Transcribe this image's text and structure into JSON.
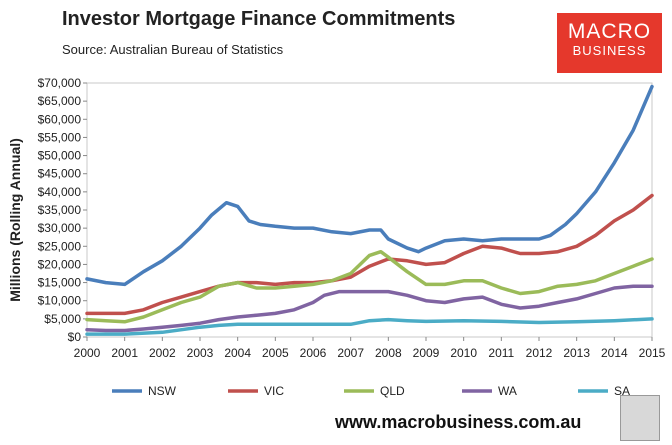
{
  "header": {
    "title": "Investor Mortgage Finance Commitments",
    "source": "Source: Australian Bureau of Statistics"
  },
  "logo": {
    "line1": "MACRO",
    "line2": "BUSINESS",
    "color": "#e5382c"
  },
  "footer": {
    "url": "www.macrobusiness.com.au"
  },
  "chart_data": {
    "type": "line",
    "title": "Investor Mortgage Finance Commitments",
    "ylabel": "Millions (Rolling Annual)",
    "xlabel": "",
    "xlim": [
      2000,
      2015
    ],
    "ylim": [
      0,
      70000
    ],
    "x_ticks": [
      "2000",
      "2001",
      "2002",
      "2003",
      "2004",
      "2005",
      "2006",
      "2007",
      "2008",
      "2009",
      "2010",
      "2011",
      "2012",
      "2013",
      "2014",
      "2015"
    ],
    "y_ticks": [
      "$0",
      "$5,000",
      "$10,000",
      "$15,000",
      "$20,000",
      "$25,000",
      "$30,000",
      "$35,000",
      "$40,000",
      "$45,000",
      "$50,000",
      "$55,000",
      "$60,000",
      "$65,000",
      "$70,000"
    ],
    "grid": false,
    "legend": "bottom",
    "series": [
      {
        "name": "NSW",
        "color": "#4a7ebb",
        "x": [
          2000,
          2000.5,
          2001,
          2001.5,
          2002,
          2002.5,
          2003,
          2003.3,
          2003.7,
          2004,
          2004.3,
          2004.6,
          2005,
          2005.5,
          2006,
          2006.5,
          2007,
          2007.5,
          2007.8,
          2008,
          2008.5,
          2008.8,
          2009,
          2009.5,
          2010,
          2010.5,
          2011,
          2011.5,
          2012,
          2012.3,
          2012.7,
          2013,
          2013.5,
          2014,
          2014.5,
          2015
        ],
        "y": [
          16000,
          15000,
          14500,
          18000,
          21000,
          25000,
          30000,
          33500,
          37000,
          36000,
          32000,
          31000,
          30500,
          30000,
          30000,
          29000,
          28500,
          29500,
          29500,
          27000,
          24500,
          23500,
          24500,
          26500,
          27000,
          26500,
          27000,
          27000,
          27000,
          28000,
          31000,
          34000,
          40000,
          48000,
          57000,
          69000
        ]
      },
      {
        "name": "VIC",
        "color": "#c0504d",
        "x": [
          2000,
          2000.5,
          2001,
          2001.5,
          2002,
          2002.5,
          2003,
          2003.5,
          2004,
          2004.5,
          2005,
          2005.5,
          2006,
          2006.5,
          2007,
          2007.5,
          2008,
          2008.5,
          2009,
          2009.5,
          2010,
          2010.5,
          2011,
          2011.5,
          2012,
          2012.5,
          2013,
          2013.5,
          2014,
          2014.5,
          2015
        ],
        "y": [
          6500,
          6500,
          6500,
          7500,
          9500,
          11000,
          12500,
          14000,
          15000,
          15000,
          14500,
          15000,
          15000,
          15500,
          16500,
          19500,
          21500,
          21000,
          20000,
          20500,
          23000,
          25000,
          24500,
          23000,
          23000,
          23500,
          25000,
          28000,
          32000,
          35000,
          39000
        ]
      },
      {
        "name": "QLD",
        "color": "#9bbb59",
        "x": [
          2000,
          2000.5,
          2001,
          2001.5,
          2002,
          2002.5,
          2003,
          2003.5,
          2004,
          2004.5,
          2005,
          2005.5,
          2006,
          2006.5,
          2007,
          2007.5,
          2007.8,
          2008,
          2008.5,
          2009,
          2009.5,
          2010,
          2010.5,
          2011,
          2011.5,
          2012,
          2012.5,
          2013,
          2013.5,
          2014,
          2014.5,
          2015
        ],
        "y": [
          4800,
          4500,
          4200,
          5500,
          7500,
          9500,
          11000,
          14000,
          15000,
          13500,
          13500,
          14000,
          14500,
          15500,
          17500,
          22500,
          23500,
          22000,
          18000,
          14500,
          14500,
          15500,
          15500,
          13500,
          12000,
          12500,
          14000,
          14500,
          15500,
          17500,
          19500,
          21500
        ]
      },
      {
        "name": "WA",
        "color": "#8064a2",
        "x": [
          2000,
          2000.5,
          2001,
          2001.5,
          2002,
          2002.5,
          2003,
          2003.5,
          2004,
          2004.5,
          2005,
          2005.5,
          2006,
          2006.3,
          2006.7,
          2007,
          2007.5,
          2008,
          2008.5,
          2009,
          2009.5,
          2010,
          2010.5,
          2011,
          2011.5,
          2012,
          2012.5,
          2013,
          2013.5,
          2014,
          2014.5,
          2015
        ],
        "y": [
          2000,
          1800,
          1800,
          2200,
          2700,
          3200,
          3800,
          4800,
          5500,
          6000,
          6500,
          7500,
          9500,
          11500,
          12500,
          12500,
          12500,
          12500,
          11500,
          10000,
          9500,
          10500,
          11000,
          9000,
          8000,
          8500,
          9500,
          10500,
          12000,
          13500,
          14000,
          14000
        ]
      },
      {
        "name": "SA",
        "color": "#4bacc6",
        "x": [
          2000,
          2001,
          2002,
          2003,
          2003.5,
          2004,
          2005,
          2006,
          2007,
          2007.5,
          2008,
          2008.5,
          2009,
          2010,
          2011,
          2012,
          2013,
          2014,
          2015
        ],
        "y": [
          800,
          800,
          1300,
          2700,
          3200,
          3500,
          3500,
          3500,
          3500,
          4500,
          4800,
          4500,
          4300,
          4500,
          4300,
          4000,
          4200,
          4500,
          5000
        ]
      }
    ]
  }
}
